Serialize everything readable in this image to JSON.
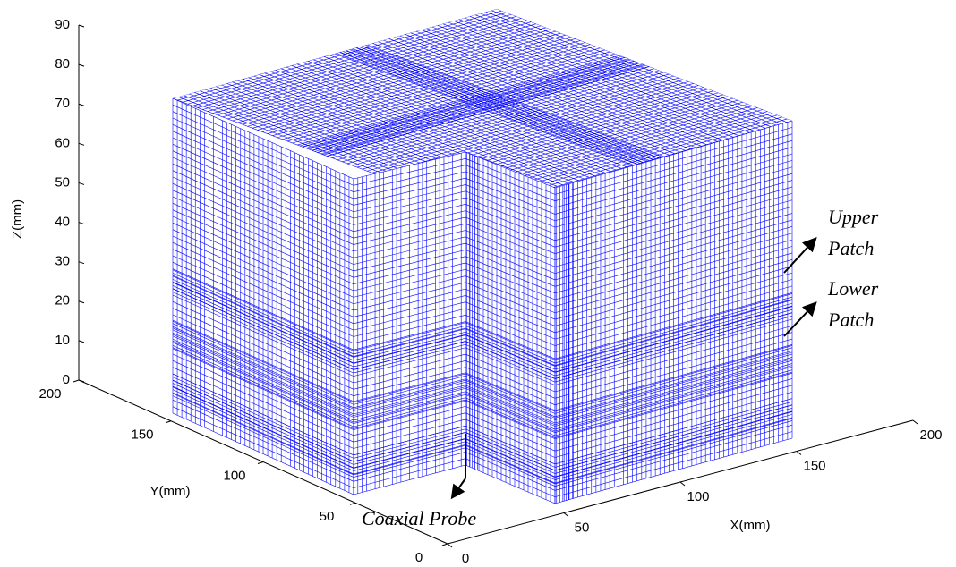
{
  "chart_data": {
    "type": "mesh3d",
    "xlabel": "X(mm)",
    "ylabel": "Y(mm)",
    "zlabel": "Z(mm)",
    "xlim": [
      0,
      200
    ],
    "ylim": [
      0,
      200
    ],
    "zlim": [
      0,
      90
    ],
    "xticks": [
      0,
      50,
      100,
      150,
      200
    ],
    "yticks": [
      0,
      50,
      100,
      150,
      200
    ],
    "zticks": [
      0,
      10,
      20,
      30,
      40,
      50,
      60,
      70,
      80,
      90
    ],
    "color": "#0000ff",
    "annotations": [
      {
        "lines": [
          "Upper",
          "Patch"
        ]
      },
      {
        "lines": [
          "Lower",
          "Patch"
        ]
      },
      {
        "lines": [
          "Coaxial Probe"
        ]
      }
    ]
  }
}
